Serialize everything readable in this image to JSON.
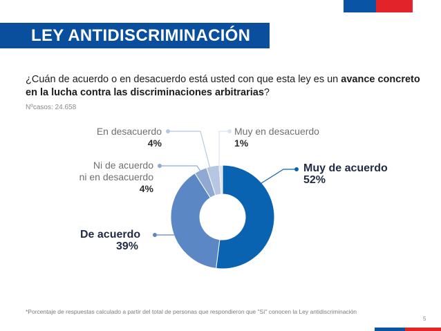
{
  "header": {
    "title": "LEY ANTIDISCRIMINACIÓN"
  },
  "question": {
    "prefix": "¿Cuán de acuerdo o en desacuerdo está usted con que esta ley es un ",
    "bold": "avance concreto en la lucha contra las discriminaciones arbitrarias",
    "suffix": "?"
  },
  "cases": "Nºcasos: 24.658",
  "chart_data": {
    "type": "pie",
    "donut": true,
    "categories": [
      "Muy de acuerdo",
      "De acuerdo",
      "Ni de acuerdo ni en desacuerdo",
      "En desacuerdo",
      "Muy en desacuerdo"
    ],
    "values": [
      52,
      39,
      4,
      4,
      1
    ],
    "value_labels": [
      "52%",
      "39%",
      "4%",
      "4%",
      "1%"
    ],
    "colors": [
      "#0a63b0",
      "#5b88c4",
      "#8fa9d2",
      "#b7c7e3",
      "#dbe3f0"
    ],
    "labels": {
      "muy_de_acuerdo": {
        "name": "Muy de acuerdo",
        "pct": "52%"
      },
      "de_acuerdo": {
        "name": "De acuerdo",
        "pct": "39%"
      },
      "ni_line1": "Ni de acuerdo",
      "ni_line2": "ni en desacuerdo",
      "ni_pct": "4%",
      "en_desacuerdo": {
        "name": "En desacuerdo",
        "pct": "4%"
      },
      "muy_en_desacuerdo": {
        "name": "Muy en desacuerdo",
        "pct": "1%"
      }
    }
  },
  "footnote": "*Porcentaje de respuestas calculado a partir del total de personas que respondieron que \"Sí\" conocen la Ley antidiscriminación",
  "page_number": "5"
}
